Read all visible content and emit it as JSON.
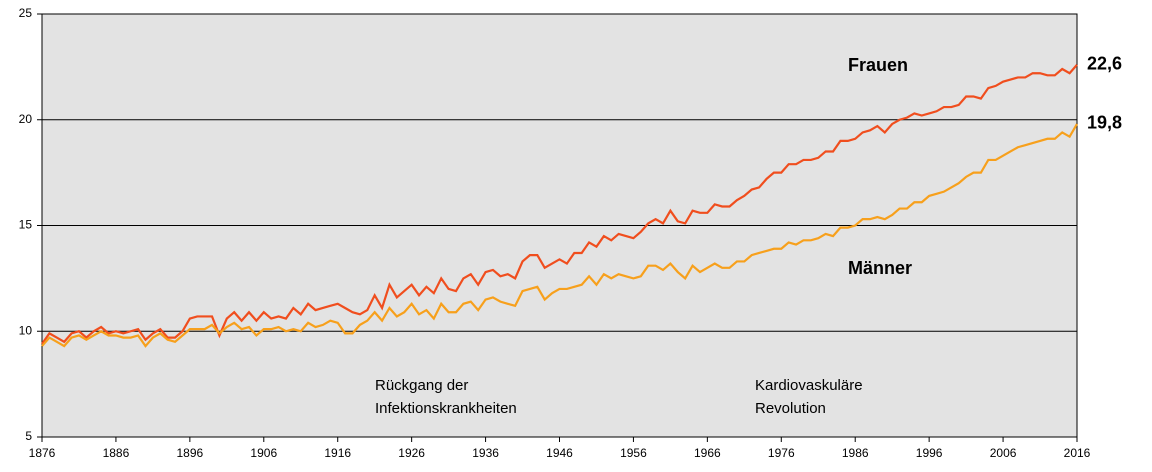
{
  "chart_data": {
    "type": "line",
    "x": [
      1876,
      1877,
      1878,
      1879,
      1880,
      1881,
      1882,
      1883,
      1884,
      1885,
      1886,
      1887,
      1888,
      1889,
      1890,
      1891,
      1892,
      1893,
      1894,
      1895,
      1896,
      1897,
      1898,
      1899,
      1900,
      1901,
      1902,
      1903,
      1904,
      1905,
      1906,
      1907,
      1908,
      1909,
      1910,
      1911,
      1912,
      1913,
      1914,
      1915,
      1916,
      1917,
      1918,
      1919,
      1920,
      1921,
      1922,
      1923,
      1924,
      1925,
      1926,
      1927,
      1928,
      1929,
      1930,
      1931,
      1932,
      1933,
      1934,
      1935,
      1936,
      1937,
      1938,
      1939,
      1940,
      1941,
      1942,
      1943,
      1944,
      1945,
      1946,
      1947,
      1948,
      1949,
      1950,
      1951,
      1952,
      1953,
      1954,
      1955,
      1956,
      1957,
      1958,
      1959,
      1960,
      1961,
      1962,
      1963,
      1964,
      1965,
      1966,
      1967,
      1968,
      1969,
      1970,
      1971,
      1972,
      1973,
      1974,
      1975,
      1976,
      1977,
      1978,
      1979,
      1980,
      1981,
      1982,
      1983,
      1984,
      1985,
      1986,
      1987,
      1988,
      1989,
      1990,
      1991,
      1992,
      1993,
      1994,
      1995,
      1996,
      1997,
      1998,
      1999,
      2000,
      2001,
      2002,
      2003,
      2004,
      2005,
      2006,
      2007,
      2008,
      2009,
      2010,
      2011,
      2012,
      2013,
      2014,
      2015,
      2016
    ],
    "series": [
      {
        "name": "Frauen",
        "color": "#f04e1e",
        "last_label": "22,6",
        "values": [
          9.4,
          9.9,
          9.7,
          9.5,
          9.9,
          10.0,
          9.7,
          10.0,
          10.2,
          9.9,
          10.0,
          9.9,
          10.0,
          10.1,
          9.6,
          9.9,
          10.1,
          9.7,
          9.7,
          10.0,
          10.6,
          10.7,
          10.7,
          10.7,
          9.8,
          10.6,
          10.9,
          10.5,
          10.9,
          10.5,
          10.9,
          10.6,
          10.7,
          10.6,
          11.1,
          10.8,
          11.3,
          11.0,
          11.1,
          11.2,
          11.3,
          11.1,
          10.9,
          10.8,
          11.0,
          11.7,
          11.1,
          12.2,
          11.6,
          11.9,
          12.2,
          11.7,
          12.1,
          11.8,
          12.5,
          12.0,
          11.9,
          12.5,
          12.7,
          12.2,
          12.8,
          12.9,
          12.6,
          12.7,
          12.5,
          13.3,
          13.6,
          13.6,
          13.0,
          13.2,
          13.4,
          13.2,
          13.7,
          13.7,
          14.2,
          14.0,
          14.5,
          14.3,
          14.6,
          14.5,
          14.4,
          14.7,
          15.1,
          15.3,
          15.1,
          15.7,
          15.2,
          15.1,
          15.7,
          15.6,
          15.6,
          16.0,
          15.9,
          15.9,
          16.2,
          16.4,
          16.7,
          16.8,
          17.2,
          17.5,
          17.5,
          17.9,
          17.9,
          18.1,
          18.1,
          18.2,
          18.5,
          18.5,
          19.0,
          19.0,
          19.1,
          19.4,
          19.5,
          19.7,
          19.4,
          19.8,
          20.0,
          20.1,
          20.3,
          20.2,
          20.3,
          20.4,
          20.6,
          20.6,
          20.7,
          21.1,
          21.1,
          21.0,
          21.5,
          21.6,
          21.8,
          21.9,
          22.0,
          22.0,
          22.2,
          22.2,
          22.1,
          22.1,
          22.4,
          22.2,
          22.6
        ]
      },
      {
        "name": "Männer",
        "color": "#f7a01c",
        "last_label": "19,8",
        "values": [
          9.3,
          9.7,
          9.5,
          9.3,
          9.7,
          9.8,
          9.6,
          9.8,
          10.0,
          9.8,
          9.8,
          9.7,
          9.7,
          9.8,
          9.3,
          9.7,
          9.9,
          9.6,
          9.5,
          9.8,
          10.1,
          10.1,
          10.1,
          10.3,
          9.9,
          10.2,
          10.4,
          10.1,
          10.2,
          9.8,
          10.1,
          10.1,
          10.2,
          10.0,
          10.1,
          10.0,
          10.4,
          10.2,
          10.3,
          10.5,
          10.4,
          9.9,
          9.9,
          10.3,
          10.5,
          10.9,
          10.5,
          11.1,
          10.7,
          10.9,
          11.3,
          10.8,
          11.0,
          10.6,
          11.3,
          10.9,
          10.9,
          11.3,
          11.4,
          11.0,
          11.5,
          11.6,
          11.4,
          11.3,
          11.2,
          11.9,
          12.0,
          12.1,
          11.5,
          11.8,
          12.0,
          12.0,
          12.1,
          12.2,
          12.6,
          12.2,
          12.7,
          12.5,
          12.7,
          12.6,
          12.5,
          12.6,
          13.1,
          13.1,
          12.9,
          13.2,
          12.8,
          12.5,
          13.1,
          12.8,
          13.0,
          13.2,
          13.0,
          13.0,
          13.3,
          13.3,
          13.6,
          13.7,
          13.8,
          13.9,
          13.9,
          14.2,
          14.1,
          14.3,
          14.3,
          14.4,
          14.6,
          14.5,
          14.9,
          14.9,
          15.0,
          15.3,
          15.3,
          15.4,
          15.3,
          15.5,
          15.8,
          15.8,
          16.1,
          16.1,
          16.4,
          16.5,
          16.6,
          16.8,
          17.0,
          17.3,
          17.5,
          17.5,
          18.1,
          18.1,
          18.3,
          18.5,
          18.7,
          18.8,
          18.9,
          19.0,
          19.1,
          19.1,
          19.4,
          19.2,
          19.8
        ]
      }
    ],
    "annotations": [
      [
        "Rückgang der",
        "Infektionskrankheiten"
      ],
      [
        "Kardiovaskuläre",
        "Revolution"
      ]
    ],
    "xlim": [
      1876,
      2016
    ],
    "xticks": [
      1876,
      1886,
      1896,
      1906,
      1916,
      1926,
      1936,
      1946,
      1956,
      1966,
      1976,
      1986,
      1996,
      2006,
      2016
    ],
    "ylim": [
      5,
      25
    ],
    "yticks": [
      5,
      10,
      15,
      20,
      25
    ],
    "grid": true
  }
}
